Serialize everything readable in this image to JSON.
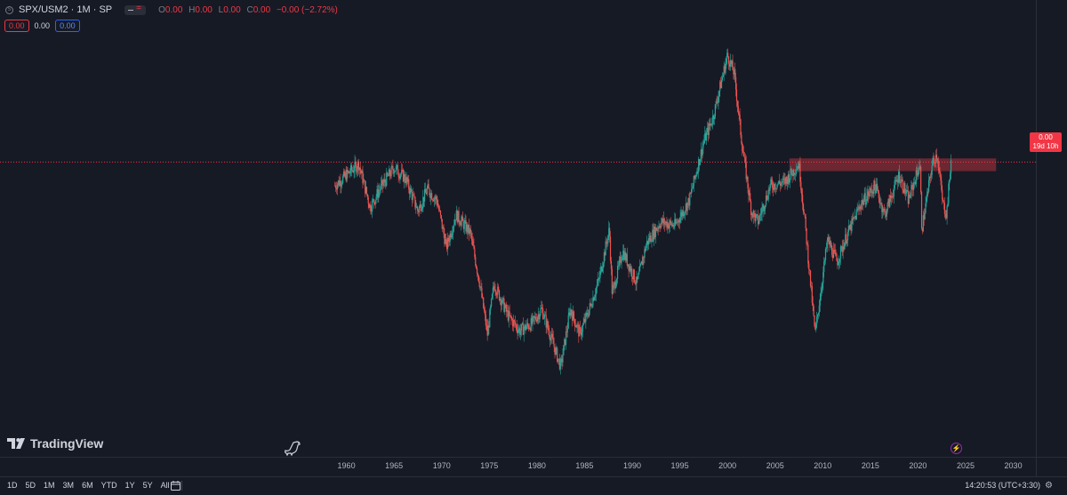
{
  "legend": {
    "title": "SPX/USM2 · 1M · SP",
    "o_label": "O",
    "o_val": "0.00",
    "h_label": "H",
    "h_val": "0.00",
    "l_label": "L",
    "l_val": "0.00",
    "c_label": "C",
    "c_val": "0.00",
    "change": "−0.00 (−2.72%)"
  },
  "boxes": {
    "sell": "0.00",
    "spread": "0.00",
    "buy": "0.00"
  },
  "price_label": {
    "value": "0.00",
    "countdown": "19d 10h"
  },
  "x_ticks": [
    "1960",
    "1965",
    "1970",
    "1975",
    "1980",
    "1985",
    "1990",
    "1995",
    "2000",
    "2005",
    "2010",
    "2015",
    "2020",
    "2025",
    "2030"
  ],
  "brand": {
    "name": "TradingView"
  },
  "bottom_toolbar": {
    "timeframes": [
      "1D",
      "5D",
      "1M",
      "3M",
      "6M",
      "YTD",
      "1Y",
      "5Y",
      "All"
    ],
    "clock": "14:20:53 (UTC+3:30)"
  },
  "colors": {
    "up": "#26a69a",
    "down": "#ef5350",
    "zone": "#7a2a35",
    "price_line": "#f23645",
    "background": "#161a25"
  },
  "chart_data": {
    "type": "candlestick",
    "series_shape": [
      [
        1958.8,
        0.64
      ],
      [
        1961.3,
        0.7
      ],
      [
        1962.5,
        0.58
      ],
      [
        1963.5,
        0.63
      ],
      [
        1965.0,
        0.69
      ],
      [
        1966.2,
        0.66
      ],
      [
        1967.5,
        0.57
      ],
      [
        1968.5,
        0.63
      ],
      [
        1969.5,
        0.6
      ],
      [
        1970.5,
        0.47
      ],
      [
        1971.5,
        0.56
      ],
      [
        1973.0,
        0.51
      ],
      [
        1974.0,
        0.37
      ],
      [
        1974.8,
        0.23
      ],
      [
        1975.5,
        0.37
      ],
      [
        1977.0,
        0.28
      ],
      [
        1978.2,
        0.24
      ],
      [
        1979.5,
        0.26
      ],
      [
        1980.5,
        0.3
      ],
      [
        1981.5,
        0.22
      ],
      [
        1982.5,
        0.14
      ],
      [
        1983.5,
        0.3
      ],
      [
        1984.5,
        0.23
      ],
      [
        1985.5,
        0.3
      ],
      [
        1986.5,
        0.38
      ],
      [
        1987.6,
        0.52
      ],
      [
        1987.9,
        0.34
      ],
      [
        1989.0,
        0.46
      ],
      [
        1990.5,
        0.37
      ],
      [
        1991.5,
        0.48
      ],
      [
        1993.0,
        0.54
      ],
      [
        1994.5,
        0.53
      ],
      [
        1996.0,
        0.6
      ],
      [
        1997.5,
        0.76
      ],
      [
        1998.5,
        0.83
      ],
      [
        2000.0,
        1.0
      ],
      [
        2000.7,
        0.95
      ],
      [
        2001.5,
        0.76
      ],
      [
        2002.5,
        0.57
      ],
      [
        2003.2,
        0.54
      ],
      [
        2004.5,
        0.64
      ],
      [
        2006.0,
        0.65
      ],
      [
        2007.5,
        0.7
      ],
      [
        2008.2,
        0.52
      ],
      [
        2009.2,
        0.23
      ],
      [
        2010.5,
        0.49
      ],
      [
        2011.5,
        0.43
      ],
      [
        2012.5,
        0.5
      ],
      [
        2014.0,
        0.59
      ],
      [
        2015.5,
        0.64
      ],
      [
        2016.5,
        0.56
      ],
      [
        2018.0,
        0.67
      ],
      [
        2019.0,
        0.6
      ],
      [
        2020.2,
        0.7
      ],
      [
        2020.4,
        0.52
      ],
      [
        2021.5,
        0.7
      ],
      [
        2022.0,
        0.73
      ],
      [
        2022.6,
        0.59
      ],
      [
        2023.0,
        0.56
      ],
      [
        2023.5,
        0.72
      ]
    ],
    "xlim": [
      1955.0,
      2032.0
    ],
    "resistance_zone": {
      "from": 2006.5,
      "to": 2028.2,
      "level_low": 0.68,
      "level_high": 0.715
    },
    "price_line_level": 0.705
  }
}
